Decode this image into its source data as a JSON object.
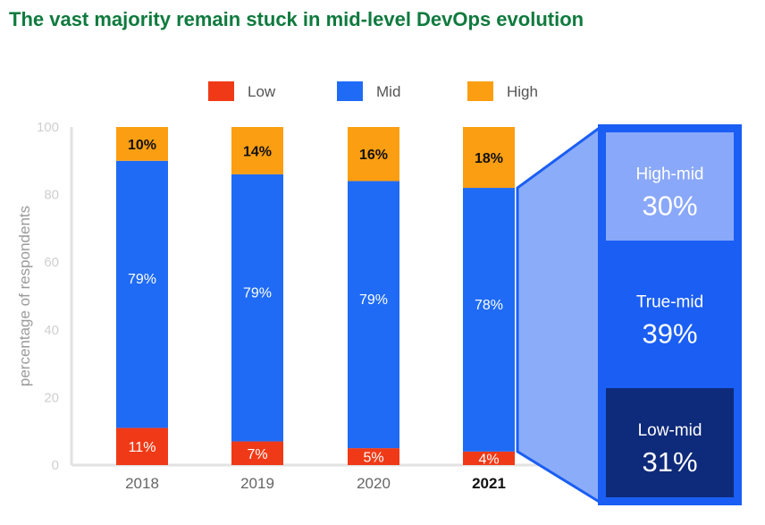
{
  "title": "The vast majority remain stuck in mid-level DevOps evolution",
  "colors": {
    "low": "#f03a17",
    "mid": "#1f6bf5",
    "high": "#fb9e12",
    "title": "#0f7a3e",
    "high_mid": "#8aa8f9",
    "true_mid": "#1a5ef3",
    "low_mid": "#0e2a7a",
    "wedge": "#8bacf8"
  },
  "chart_data": {
    "type": "bar",
    "stacked": true,
    "categories": [
      "2018",
      "2019",
      "2020",
      "2021"
    ],
    "highlighted_category": "2021",
    "ylabel": "percentage of respondents",
    "ylim": [
      0,
      100
    ],
    "yticks": [
      "0",
      "20",
      "40",
      "60",
      "80",
      "100"
    ],
    "legend": {
      "position": "top",
      "entries": [
        "Low",
        "Mid",
        "High"
      ]
    },
    "series": [
      {
        "name": "Low",
        "values": [
          11,
          7,
          5,
          4
        ],
        "labels": [
          "11%",
          "7%",
          "5%",
          "4%"
        ]
      },
      {
        "name": "Mid",
        "values": [
          79,
          79,
          79,
          78
        ],
        "labels": [
          "79%",
          "79%",
          "79%",
          "78%"
        ]
      },
      {
        "name": "High",
        "values": [
          10,
          14,
          16,
          18
        ],
        "labels": [
          "10%",
          "14%",
          "16%",
          "18%"
        ]
      }
    ],
    "breakdown": {
      "of_category": "2021",
      "of_series": "Mid",
      "segments": [
        {
          "name": "High-mid",
          "value": 30,
          "label": "30%"
        },
        {
          "name": "True-mid",
          "value": 39,
          "label": "39%"
        },
        {
          "name": "Low-mid",
          "value": 31,
          "label": "31%"
        }
      ]
    }
  }
}
